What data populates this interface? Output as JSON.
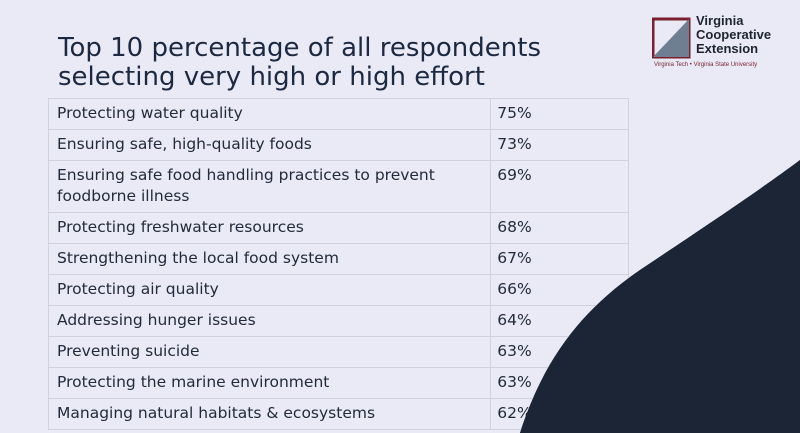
{
  "slide": {
    "title": "Top 10 percentage of all respondents selecting very high or high effort",
    "colors": {
      "background": "#e9eaf6",
      "wave": "#1b2535",
      "accent": "#7a1f2e"
    }
  },
  "logo": {
    "line1": "Virginia",
    "line2": "Cooperative",
    "line3": "Extension",
    "sub": "Virginia Tech • Virginia State University",
    "icon": "vce-logo-mark"
  },
  "table": {
    "rows": [
      {
        "label": "Protecting water quality",
        "value": "75%"
      },
      {
        "label": "Ensuring safe, high-quality foods",
        "value": "73%"
      },
      {
        "label": "Ensuring safe food handling practices to prevent foodborne illness",
        "value": "69%"
      },
      {
        "label": "Protecting freshwater resources",
        "value": "68%"
      },
      {
        "label": "Strengthening the local food system",
        "value": "67%"
      },
      {
        "label": "Protecting air quality",
        "value": "66%"
      },
      {
        "label": "Addressing hunger issues",
        "value": "64%"
      },
      {
        "label": "Preventing suicide",
        "value": "63%"
      },
      {
        "label": "Protecting the marine environment",
        "value": "63%"
      },
      {
        "label": "Managing natural habitats & ecosystems",
        "value": "62%"
      }
    ]
  }
}
